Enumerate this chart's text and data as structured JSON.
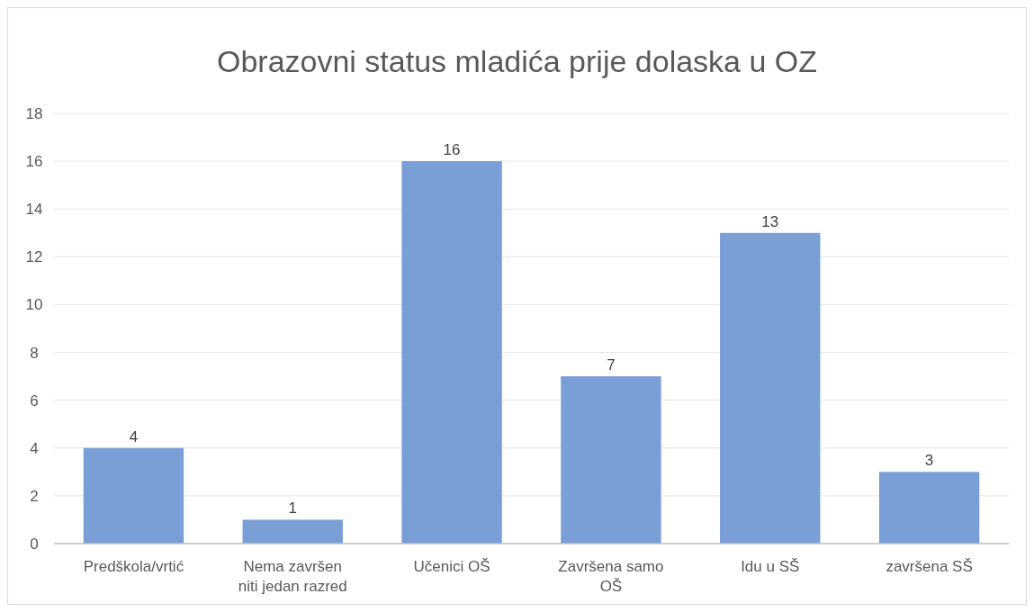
{
  "chart_data": {
    "type": "bar",
    "title": "Obrazovni status mladića prije dolaska u OZ",
    "categories": [
      "Predškola/vrtić",
      "Nema završen niti jedan razred",
      "Učenici OŠ",
      "Završena samo OŠ",
      "Idu u SŠ",
      "završena SŠ"
    ],
    "values": [
      4,
      1,
      16,
      7,
      13,
      3
    ],
    "color": "#7a9fd6",
    "ylim": [
      0,
      18
    ],
    "yticks": [
      0,
      2,
      4,
      6,
      8,
      10,
      12,
      14,
      16,
      18
    ],
    "grid": "y",
    "data_labels": true
  }
}
